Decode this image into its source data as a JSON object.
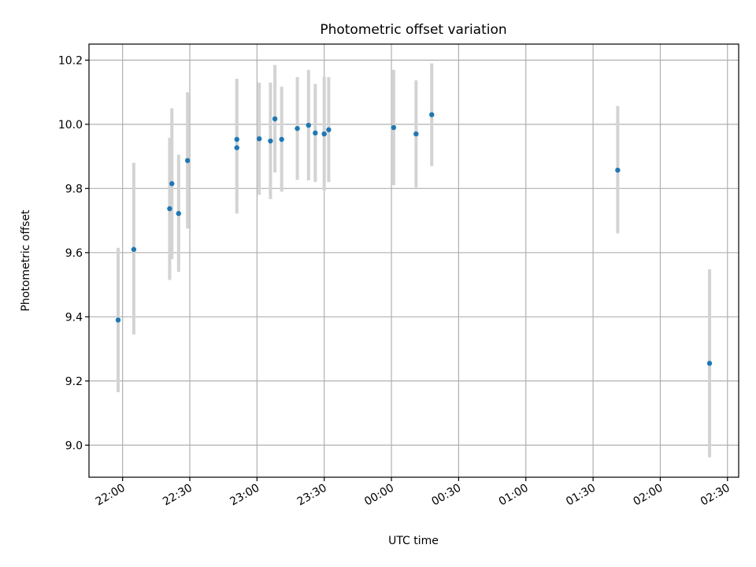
{
  "chart_data": {
    "type": "scatter",
    "title": "Photometric offset variation",
    "xlabel": "UTC time",
    "ylabel": "Photometric offset",
    "ylim": [
      8.9,
      10.25
    ],
    "xlim": [
      "21:45",
      "02:35"
    ],
    "grid": true,
    "error_bars": true,
    "colors": {
      "point": "#1f77b4",
      "errorbar": "#d3d3d3"
    },
    "x_ticks": [
      "22:00",
      "22:30",
      "23:00",
      "23:30",
      "00:00",
      "00:30",
      "01:00",
      "01:30",
      "02:00",
      "02:30"
    ],
    "y_ticks": [
      "9.0",
      "9.2",
      "9.4",
      "9.6",
      "9.8",
      "10.0",
      "10.2"
    ],
    "points": [
      {
        "x": "21:58",
        "y": 9.39,
        "err_low": 9.165,
        "err_high": 9.615
      },
      {
        "x": "22:05",
        "y": 9.61,
        "err_low": 9.345,
        "err_high": 9.88
      },
      {
        "x": "22:21",
        "y": 9.737,
        "err_low": 9.515,
        "err_high": 9.958
      },
      {
        "x": "22:22",
        "y": 9.815,
        "err_low": 9.58,
        "err_high": 10.05
      },
      {
        "x": "22:25",
        "y": 9.722,
        "err_low": 9.54,
        "err_high": 9.905
      },
      {
        "x": "22:29",
        "y": 9.887,
        "err_low": 9.675,
        "err_high": 10.1
      },
      {
        "x": "22:51",
        "y": 9.953,
        "err_low": 9.765,
        "err_high": 10.142
      },
      {
        "x": "22:51",
        "y": 9.927,
        "err_low": 9.722,
        "err_high": 10.133
      },
      {
        "x": "23:01",
        "y": 9.955,
        "err_low": 9.78,
        "err_high": 10.13
      },
      {
        "x": "23:06",
        "y": 9.948,
        "err_low": 9.767,
        "err_high": 10.13
      },
      {
        "x": "23:08",
        "y": 10.017,
        "err_low": 9.85,
        "err_high": 10.185
      },
      {
        "x": "23:11",
        "y": 9.953,
        "err_low": 9.79,
        "err_high": 10.117
      },
      {
        "x": "23:18",
        "y": 9.987,
        "err_low": 9.827,
        "err_high": 10.147
      },
      {
        "x": "23:23",
        "y": 9.997,
        "err_low": 9.825,
        "err_high": 10.17
      },
      {
        "x": "23:26",
        "y": 9.973,
        "err_low": 9.82,
        "err_high": 10.126
      },
      {
        "x": "23:30",
        "y": 9.97,
        "err_low": 9.793,
        "err_high": 10.148
      },
      {
        "x": "23:32",
        "y": 9.983,
        "err_low": 9.82,
        "err_high": 10.147
      },
      {
        "x": "00:01",
        "y": 9.99,
        "err_low": 9.81,
        "err_high": 10.17
      },
      {
        "x": "00:11",
        "y": 9.97,
        "err_low": 9.803,
        "err_high": 10.137
      },
      {
        "x": "00:18",
        "y": 10.03,
        "err_low": 9.87,
        "err_high": 10.19
      },
      {
        "x": "01:41",
        "y": 9.857,
        "err_low": 9.66,
        "err_high": 10.057
      },
      {
        "x": "02:22",
        "y": 9.255,
        "err_low": 8.962,
        "err_high": 9.548
      }
    ]
  }
}
